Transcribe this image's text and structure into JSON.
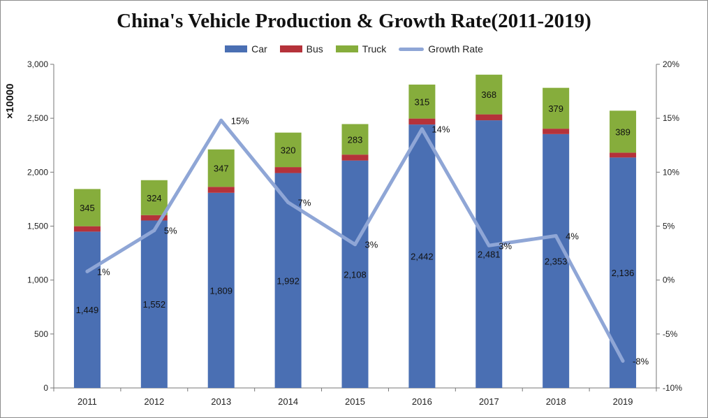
{
  "chart_data": {
    "type": "bar",
    "title": "China's Vehicle Production & Growth Rate(2011-2019)",
    "y_unit_label": "×10000",
    "categories": [
      "2011",
      "2012",
      "2013",
      "2014",
      "2015",
      "2016",
      "2017",
      "2018",
      "2019"
    ],
    "stacked": true,
    "series": [
      {
        "name": "Car",
        "type": "bar",
        "color": "#4a6fb3",
        "values": [
          1449,
          1552,
          1809,
          1992,
          2108,
          2442,
          2481,
          2353,
          2136
        ],
        "labels": [
          "1,449",
          "1,552",
          "1,809",
          "1,992",
          "2,108",
          "2,442",
          "2,481",
          "2,353",
          "2,136"
        ]
      },
      {
        "name": "Bus",
        "type": "bar",
        "color": "#b5323a",
        "values": [
          50,
          50,
          55,
          55,
          55,
          55,
          55,
          50,
          45
        ]
      },
      {
        "name": "Truck",
        "type": "bar",
        "color": "#86ad3c",
        "values": [
          345,
          324,
          347,
          320,
          283,
          315,
          368,
          379,
          389
        ],
        "labels": [
          "345",
          "324",
          "347",
          "320",
          "283",
          "315",
          "368",
          "379",
          "389"
        ]
      },
      {
        "name": "Growth Rate",
        "type": "line",
        "axis": "right",
        "color": "#8fa6d6",
        "values": [
          0.8,
          4.6,
          14.8,
          7.2,
          3.3,
          14.0,
          3.2,
          4.1,
          -7.5
        ],
        "labels": [
          "1%",
          "5%",
          "15%",
          "7%",
          "3%",
          "14%",
          "3%",
          "4%",
          "-8%"
        ]
      }
    ],
    "y_left": {
      "min": 0,
      "max": 3000,
      "ticks": [
        "0",
        "500",
        "1,000",
        "1,500",
        "2,000",
        "2,500",
        "3,000"
      ]
    },
    "y_right": {
      "min": -10,
      "max": 20,
      "ticks": [
        "-10%",
        "-5%",
        "0%",
        "5%",
        "10%",
        "15%",
        "20%"
      ]
    },
    "grid": false,
    "legend_position": "top"
  }
}
